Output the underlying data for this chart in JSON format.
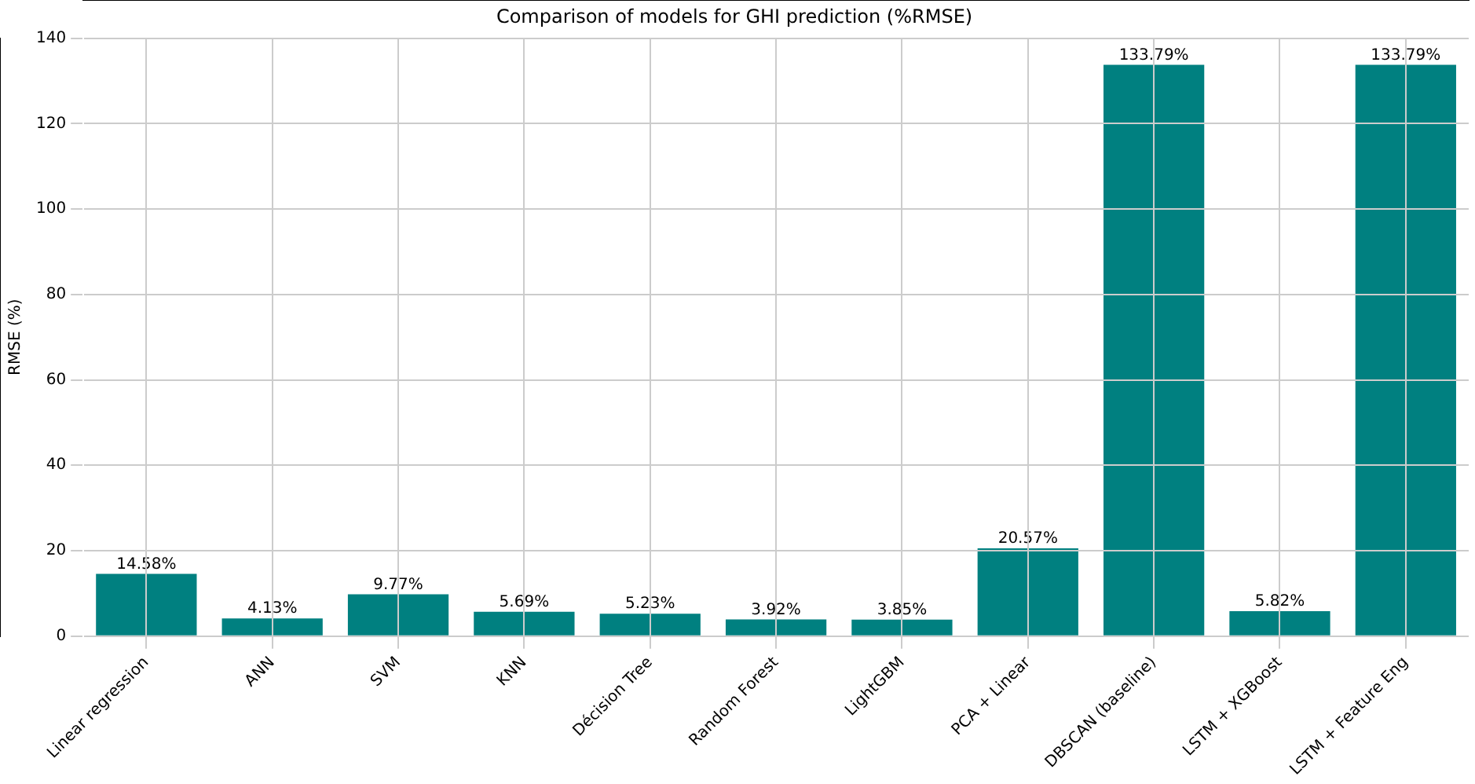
{
  "chart_data": {
    "type": "bar",
    "title": "Comparison of models for GHI prediction (%RMSE)",
    "ylabel": "RMSE (%)",
    "categories": [
      "Linear regression",
      "ANN",
      "SVM",
      "KNN",
      "Décision Tree",
      "Random Forest",
      "LightGBM",
      "PCA + Linear",
      "DBSCAN (baseline)",
      "LSTM + XGBoost",
      "LSTM + Feature Eng"
    ],
    "values": [
      14.58,
      4.13,
      9.77,
      5.69,
      5.23,
      3.92,
      3.85,
      20.57,
      133.79,
      5.82,
      133.79
    ],
    "value_labels": [
      "14.58%",
      "4.13%",
      "9.77%",
      "5.69%",
      "5.23%",
      "3.92%",
      "3.85%",
      "20.57%",
      "133.79%",
      "5.82%",
      "133.79%"
    ],
    "color": "#008080",
    "ylim": [
      0,
      140
    ],
    "yticks": [
      0,
      20,
      40,
      60,
      80,
      100,
      120,
      140
    ],
    "grid": true
  }
}
